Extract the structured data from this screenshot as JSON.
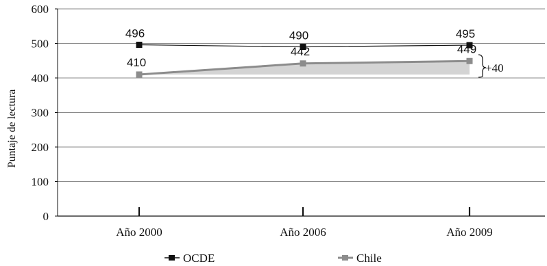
{
  "chart_data": {
    "type": "line",
    "categories": [
      "Año 2000",
      "Año 2006",
      "Año 2009"
    ],
    "series": [
      {
        "name": "OCDE",
        "values": [
          496,
          490,
          495
        ],
        "color": "#111111",
        "marker": "square"
      },
      {
        "name": "Chile",
        "values": [
          410,
          442,
          449
        ],
        "color": "#8c8c8c",
        "marker": "square",
        "fill": "#d4d4d4"
      }
    ],
    "data_labels": {
      "OCDE": [
        "496",
        "490",
        "495"
      ],
      "Chile": [
        "410",
        "442",
        "449"
      ]
    },
    "annotation": "+40",
    "ylabel": "Puntaje de lectura",
    "ylim": [
      0,
      600
    ],
    "yticks": [
      "0",
      "100",
      "200",
      "300",
      "400",
      "500",
      "600"
    ],
    "grid": true,
    "legend_position": "bottom"
  }
}
